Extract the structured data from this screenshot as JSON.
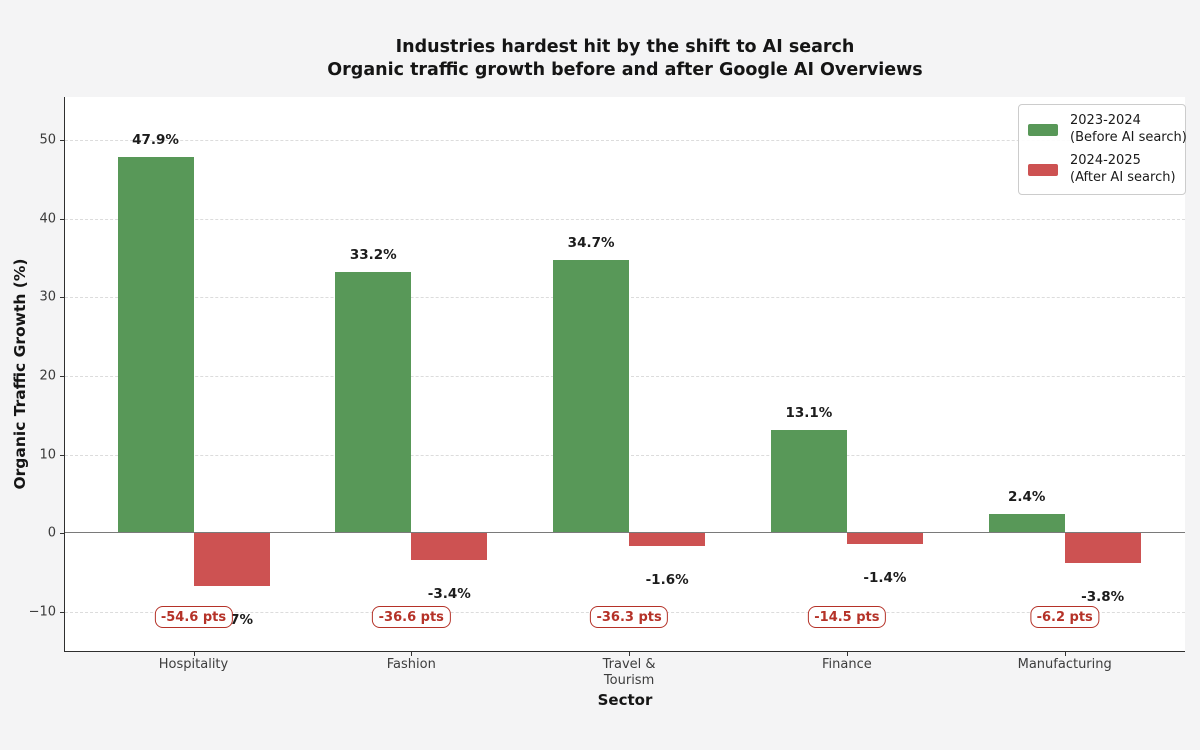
{
  "chart_data": {
    "type": "bar",
    "title": "Industries hardest hit by the shift to AI search",
    "subtitle": "Organic traffic growth before and after Google AI Overviews",
    "xlabel": "Sector",
    "ylabel": "Organic Traffic Growth (%)",
    "categories": [
      "Hospitality",
      "Fashion",
      "Travel &\nTourism",
      "Finance",
      "Manufacturing"
    ],
    "series": [
      {
        "name": "2023-2024 (Before AI search)",
        "name_lines": [
          "2023-2024",
          "(Before AI search)"
        ],
        "color": "#589858",
        "values": [
          47.9,
          33.2,
          34.7,
          13.1,
          2.4
        ],
        "labels": [
          "47.9%",
          "33.2%",
          "34.7%",
          "13.1%",
          "2.4%"
        ]
      },
      {
        "name": "2024-2025 (After AI search)",
        "name_lines": [
          "2024-2025",
          "(After AI search)"
        ],
        "color": "#cd5252",
        "values": [
          -6.7,
          -3.4,
          -1.6,
          -1.4,
          -3.8
        ],
        "labels": [
          "-6.7%",
          "-3.4%",
          "-1.6%",
          "-1.4%",
          "-3.8%"
        ]
      }
    ],
    "annotations": {
      "labels": [
        "-54.6 pts",
        "-36.6 pts",
        "-36.3 pts",
        "-14.5 pts",
        "-6.2 pts"
      ],
      "color": "#b53228",
      "y_value": -10.7
    },
    "yticks": [
      {
        "value": 50,
        "label": "50"
      },
      {
        "value": 40,
        "label": "40"
      },
      {
        "value": 30,
        "label": "30"
      },
      {
        "value": 20,
        "label": "20"
      },
      {
        "value": 10,
        "label": "10"
      },
      {
        "value": 0,
        "label": "0"
      },
      {
        "value": -10,
        "label": "−10"
      }
    ],
    "ylim": [
      -15,
      55.5
    ],
    "grid": "horizontal-dashed",
    "legend_position": "upper-right"
  }
}
